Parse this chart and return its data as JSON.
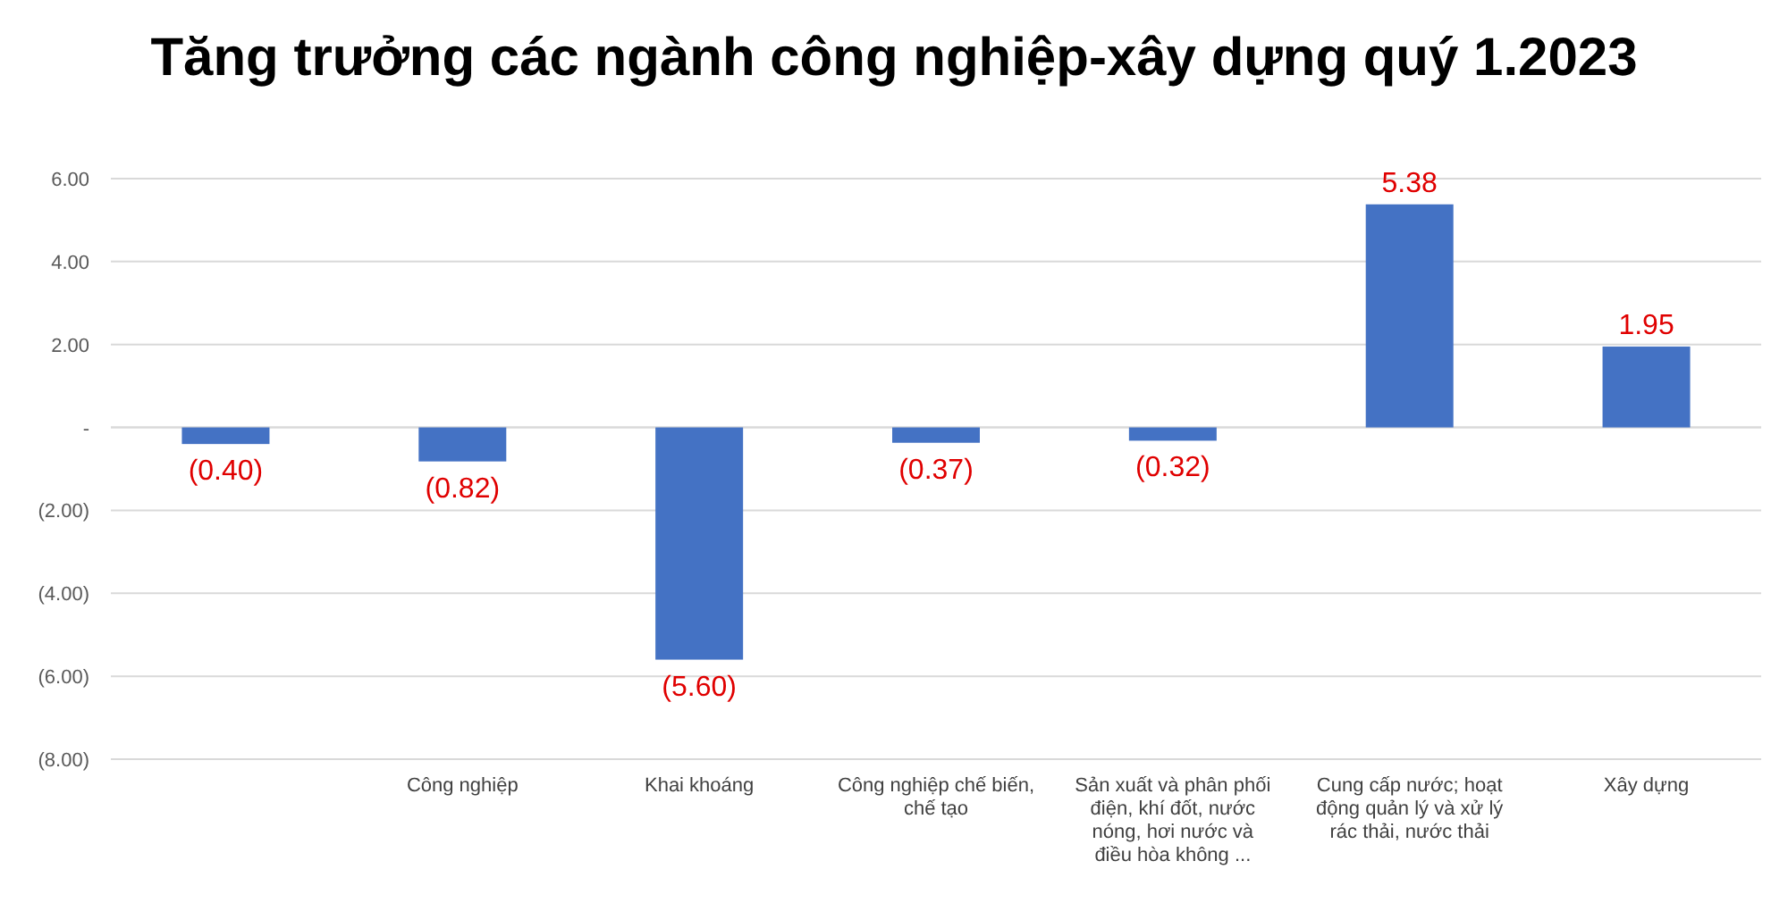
{
  "chart_data": {
    "type": "bar",
    "title": "Tăng trưởng các ngành công nghiệp-xây dựng quý 1.2023",
    "categories": [
      null,
      "Công nghiệp",
      "Khai khoáng",
      "Công nghiệp chế biến, chế tạo",
      "Sản xuất và phân phối điện, khí đốt, nước nóng, hơi nước và điều hòa không ...",
      "Cung cấp nước; hoạt động quản lý và xử lý rác thải, nước thải",
      "Xây dựng"
    ],
    "values": [
      -0.4,
      -0.82,
      -5.6,
      -0.37,
      -0.32,
      5.38,
      1.95
    ],
    "value_labels": [
      "(0.40)",
      "(0.82)",
      "(5.60)",
      "(0.37)",
      "(0.32)",
      "5.38",
      "1.95"
    ],
    "color": "#4472c4",
    "ylim": [
      -8,
      6
    ],
    "yticks": [
      {
        "value": -8,
        "label": "(8.00)"
      },
      {
        "value": -6,
        "label": "(6.00)"
      },
      {
        "value": -4,
        "label": "(4.00)"
      },
      {
        "value": -2,
        "label": "(2.00)"
      },
      {
        "value": 0,
        "label": "-"
      },
      {
        "value": 2,
        "label": "2.00"
      },
      {
        "value": 4,
        "label": "4.00"
      },
      {
        "value": 6,
        "label": "6.00"
      }
    ],
    "grid": "y"
  }
}
